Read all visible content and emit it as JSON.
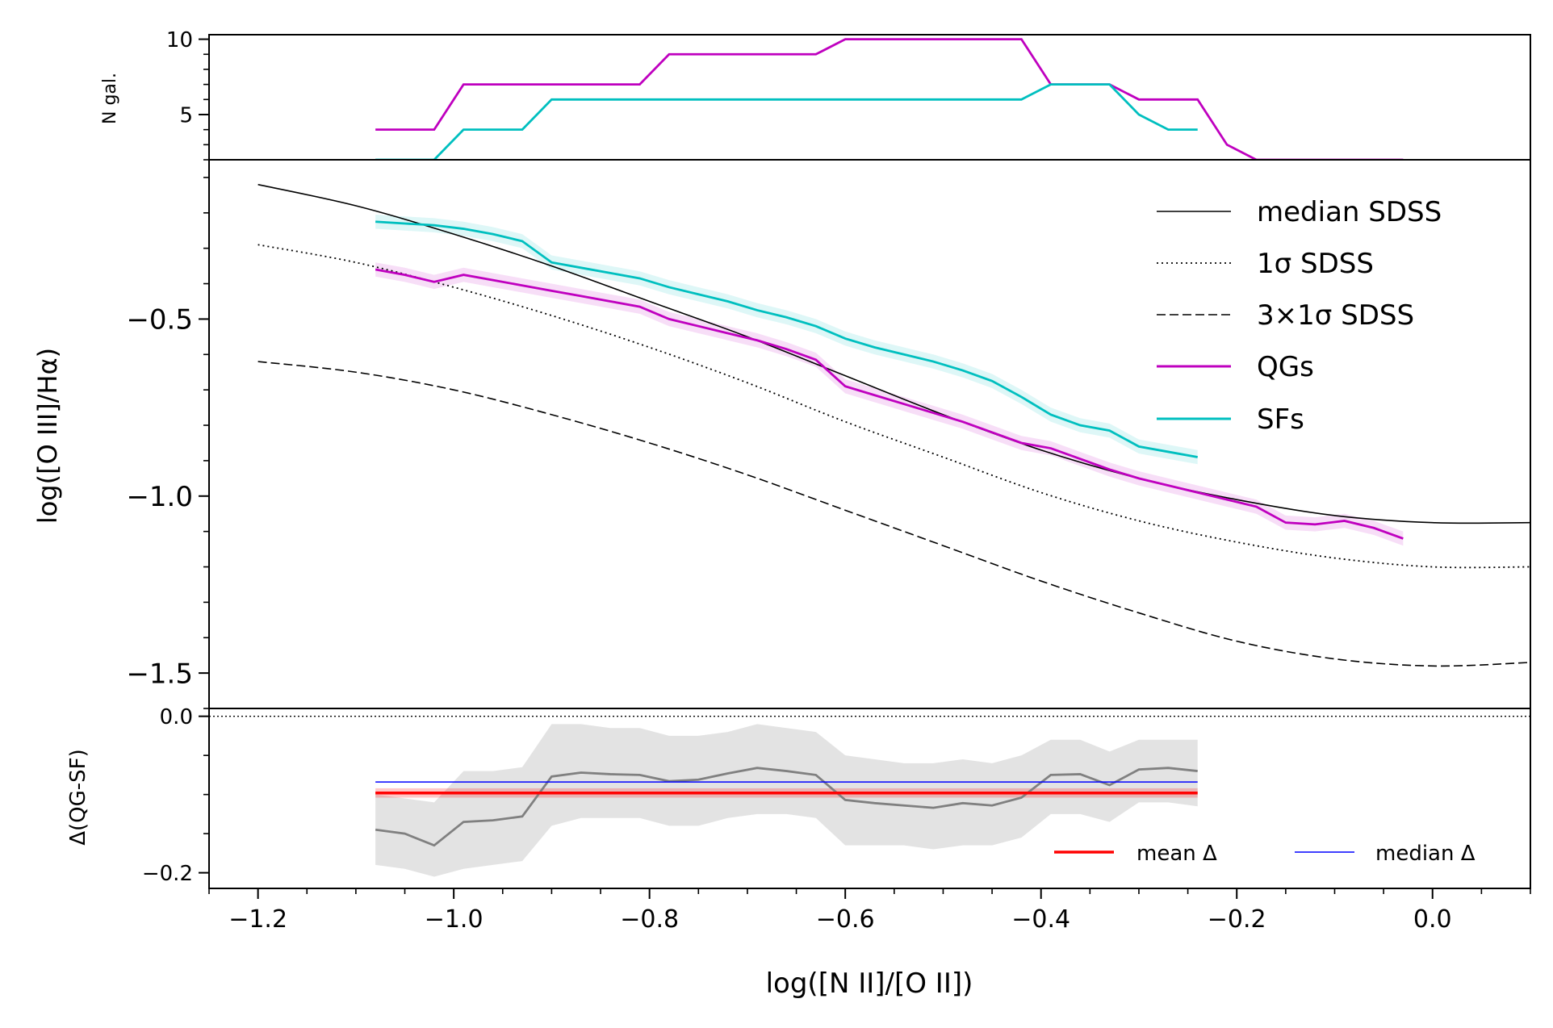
{
  "chart_data": [
    {
      "type": "line",
      "panel": "top",
      "ylabel": "N gal.",
      "ylim": [
        2,
        10.3
      ],
      "yticks": [
        5,
        10
      ],
      "ytick_labels": [
        "5",
        "10"
      ],
      "series": [
        {
          "name": "QGs",
          "color": "#bf00bf",
          "step": true,
          "x": [
            -1.08,
            -1.05,
            -1.02,
            -0.99,
            -0.96,
            -0.93,
            -0.9,
            -0.87,
            -0.84,
            -0.81,
            -0.78,
            -0.75,
            -0.72,
            -0.69,
            -0.66,
            -0.63,
            -0.6,
            -0.57,
            -0.54,
            -0.51,
            -0.48,
            -0.45,
            -0.42,
            -0.39,
            -0.36,
            -0.33,
            -0.3,
            -0.27,
            -0.24,
            -0.21,
            -0.18,
            -0.15,
            -0.12,
            -0.09,
            -0.06,
            -0.03
          ],
          "y": [
            4,
            4,
            4,
            7,
            7,
            7,
            7,
            7,
            7,
            7,
            9,
            9,
            9,
            9,
            9,
            9,
            10,
            10,
            10,
            10,
            10,
            10,
            10,
            7,
            7,
            7,
            6,
            6,
            6,
            3,
            2,
            2,
            2,
            2,
            2,
            2
          ]
        },
        {
          "name": "SFs",
          "color": "#00bfbf",
          "step": true,
          "x": [
            -1.08,
            -1.05,
            -1.02,
            -0.99,
            -0.96,
            -0.93,
            -0.9,
            -0.87,
            -0.84,
            -0.81,
            -0.78,
            -0.75,
            -0.72,
            -0.69,
            -0.66,
            -0.63,
            -0.6,
            -0.57,
            -0.54,
            -0.51,
            -0.48,
            -0.45,
            -0.42,
            -0.39,
            -0.36,
            -0.33,
            -0.3,
            -0.27,
            -0.24
          ],
          "y": [
            2,
            2,
            2,
            4,
            4,
            4,
            6,
            6,
            6,
            6,
            6,
            6,
            6,
            6,
            6,
            6,
            6,
            6,
            6,
            6,
            6,
            6,
            6,
            7,
            7,
            7,
            5,
            4,
            4
          ]
        }
      ]
    },
    {
      "type": "line",
      "panel": "main",
      "ylabel": "log([O III]/Hα)",
      "ylim": [
        -1.6,
        -0.05
      ],
      "yticks": [
        -1.5,
        -1.0,
        -0.5
      ],
      "ytick_labels": [
        "−1.5",
        "−1.0",
        "−0.5"
      ],
      "legend_position": "top-right",
      "series": [
        {
          "name": "median SDSS",
          "legend_label": "median SDSS",
          "color": "#000000",
          "style": "solid",
          "x": [
            -1.2,
            -1.1,
            -1.0,
            -0.9,
            -0.8,
            -0.7,
            -0.6,
            -0.5,
            -0.4,
            -0.3,
            -0.2,
            -0.1,
            0.0,
            0.1
          ],
          "y": [
            -0.12,
            -0.18,
            -0.26,
            -0.35,
            -0.45,
            -0.55,
            -0.66,
            -0.77,
            -0.87,
            -0.95,
            -1.01,
            -1.055,
            -1.075,
            -1.075
          ]
        },
        {
          "name": "1σ SDSS",
          "legend_label": "1σ SDSS",
          "color": "#000000",
          "style": "dotted",
          "x": [
            -1.2,
            -1.1,
            -1.0,
            -0.9,
            -0.8,
            -0.7,
            -0.6,
            -0.5,
            -0.4,
            -0.3,
            -0.2,
            -0.1,
            0.0,
            0.1
          ],
          "y": [
            -0.29,
            -0.34,
            -0.41,
            -0.49,
            -0.58,
            -0.68,
            -0.79,
            -0.89,
            -0.99,
            -1.07,
            -1.13,
            -1.175,
            -1.2,
            -1.2
          ]
        },
        {
          "name": "3×1σ SDSS",
          "legend_label": "3×1σ SDSS",
          "color": "#000000",
          "style": "dashed",
          "x": [
            -1.2,
            -1.1,
            -1.0,
            -0.9,
            -0.8,
            -0.7,
            -0.6,
            -0.5,
            -0.4,
            -0.3,
            -0.2,
            -0.1,
            0.0,
            0.1
          ],
          "y": [
            -0.62,
            -0.65,
            -0.7,
            -0.77,
            -0.85,
            -0.94,
            -1.04,
            -1.14,
            -1.24,
            -1.33,
            -1.41,
            -1.46,
            -1.48,
            -1.47
          ]
        },
        {
          "name": "QGs",
          "legend_label": "QGs",
          "color": "#bf00bf",
          "style": "solid",
          "band": 0.02,
          "x": [
            -1.08,
            -1.05,
            -1.02,
            -0.99,
            -0.96,
            -0.93,
            -0.9,
            -0.87,
            -0.84,
            -0.81,
            -0.78,
            -0.75,
            -0.72,
            -0.69,
            -0.66,
            -0.63,
            -0.6,
            -0.57,
            -0.54,
            -0.51,
            -0.48,
            -0.45,
            -0.42,
            -0.39,
            -0.36,
            -0.33,
            -0.3,
            -0.27,
            -0.24,
            -0.21,
            -0.18,
            -0.15,
            -0.12,
            -0.09,
            -0.06,
            -0.03
          ],
          "y": [
            -0.36,
            -0.375,
            -0.395,
            -0.375,
            -0.39,
            -0.405,
            -0.42,
            -0.435,
            -0.45,
            -0.465,
            -0.5,
            -0.52,
            -0.54,
            -0.56,
            -0.585,
            -0.615,
            -0.69,
            -0.715,
            -0.74,
            -0.765,
            -0.79,
            -0.82,
            -0.85,
            -0.865,
            -0.895,
            -0.925,
            -0.95,
            -0.97,
            -0.99,
            -1.01,
            -1.03,
            -1.075,
            -1.08,
            -1.07,
            -1.09,
            -1.12
          ]
        },
        {
          "name": "SFs",
          "legend_label": "SFs",
          "color": "#00bfbf",
          "style": "solid",
          "band": 0.02,
          "x": [
            -1.08,
            -1.05,
            -1.02,
            -0.99,
            -0.96,
            -0.93,
            -0.9,
            -0.87,
            -0.84,
            -0.81,
            -0.78,
            -0.75,
            -0.72,
            -0.69,
            -0.66,
            -0.63,
            -0.6,
            -0.57,
            -0.54,
            -0.51,
            -0.48,
            -0.45,
            -0.42,
            -0.39,
            -0.36,
            -0.33,
            -0.3,
            -0.27,
            -0.24
          ],
          "y": [
            -0.225,
            -0.23,
            -0.235,
            -0.245,
            -0.26,
            -0.28,
            -0.34,
            -0.355,
            -0.37,
            -0.385,
            -0.41,
            -0.43,
            -0.45,
            -0.475,
            -0.495,
            -0.52,
            -0.555,
            -0.58,
            -0.6,
            -0.62,
            -0.645,
            -0.675,
            -0.72,
            -0.77,
            -0.8,
            -0.815,
            -0.86,
            -0.875,
            -0.89
          ]
        }
      ]
    },
    {
      "type": "line",
      "panel": "bottom",
      "xlabel": "log([N II]/[O II])",
      "ylabel": "Δ(QG-SF)",
      "xlim": [
        -1.25,
        0.1
      ],
      "xticks": [
        -1.2,
        -1.0,
        -0.8,
        -0.6,
        -0.4,
        -0.2,
        0.0
      ],
      "xtick_labels": [
        "−1.2",
        "−1.0",
        "−0.8",
        "−0.6",
        "−0.4",
        "−0.2",
        "0.0"
      ],
      "ylim": [
        -0.22,
        0.01
      ],
      "yticks": [
        -0.2,
        0.0
      ],
      "ytick_labels": [
        "−0.2",
        "0.0"
      ],
      "reference_line": 0.0,
      "legend_position": "bottom-right",
      "series": [
        {
          "name": "Δ",
          "color": "#808080",
          "style": "solid",
          "x": [
            -1.08,
            -1.05,
            -1.02,
            -0.99,
            -0.96,
            -0.93,
            -0.9,
            -0.87,
            -0.84,
            -0.81,
            -0.78,
            -0.75,
            -0.72,
            -0.69,
            -0.66,
            -0.63,
            -0.6,
            -0.57,
            -0.54,
            -0.51,
            -0.48,
            -0.45,
            -0.42,
            -0.39,
            -0.36,
            -0.33,
            -0.3,
            -0.27,
            -0.24
          ],
          "y": [
            -0.145,
            -0.15,
            -0.165,
            -0.135,
            -0.133,
            -0.128,
            -0.077,
            -0.072,
            -0.074,
            -0.075,
            -0.083,
            -0.081,
            -0.073,
            -0.066,
            -0.07,
            -0.075,
            -0.107,
            -0.111,
            -0.114,
            -0.117,
            -0.111,
            -0.114,
            -0.104,
            -0.075,
            -0.074,
            -0.088,
            -0.068,
            -0.066,
            -0.07
          ],
          "band_upper": [
            -0.1,
            -0.105,
            -0.11,
            -0.07,
            -0.07,
            -0.065,
            -0.01,
            -0.01,
            -0.015,
            -0.015,
            -0.025,
            -0.025,
            -0.02,
            -0.01,
            -0.015,
            -0.02,
            -0.05,
            -0.055,
            -0.06,
            -0.06,
            -0.055,
            -0.06,
            -0.05,
            -0.03,
            -0.03,
            -0.045,
            -0.03,
            -0.03,
            -0.03
          ],
          "band_lower": [
            -0.19,
            -0.195,
            -0.205,
            -0.195,
            -0.19,
            -0.185,
            -0.14,
            -0.13,
            -0.13,
            -0.13,
            -0.14,
            -0.14,
            -0.13,
            -0.125,
            -0.125,
            -0.13,
            -0.165,
            -0.165,
            -0.165,
            -0.17,
            -0.165,
            -0.165,
            -0.155,
            -0.125,
            -0.125,
            -0.135,
            -0.11,
            -0.11,
            -0.115
          ]
        },
        {
          "name": "mean Δ",
          "legend_label": "mean Δ",
          "color": "#ff0000",
          "style": "solid",
          "x_range": [
            -1.08,
            -0.24
          ],
          "value": -0.098,
          "band": 0.006
        },
        {
          "name": "median Δ",
          "legend_label": "median Δ",
          "color": "#0000ff",
          "style": "solid",
          "x_range": [
            -1.08,
            -0.24
          ],
          "value": -0.084
        }
      ]
    }
  ]
}
